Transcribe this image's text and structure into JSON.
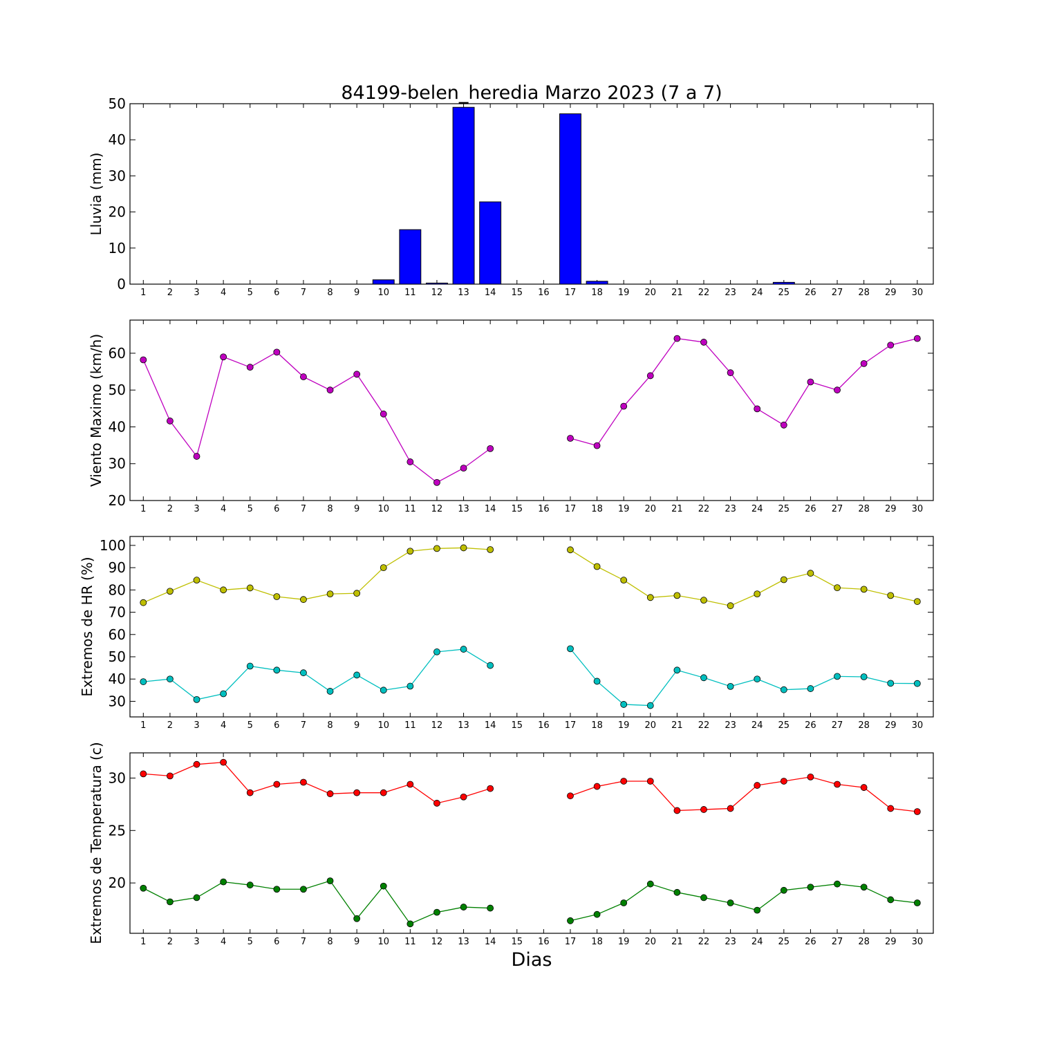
{
  "chart_data": {
    "title": "84199-belen_heredia Marzo 2023  (7 a 7)",
    "xlabel": "Dias",
    "days": [
      1,
      2,
      3,
      4,
      5,
      6,
      7,
      8,
      9,
      10,
      11,
      12,
      13,
      14,
      15,
      16,
      17,
      18,
      19,
      20,
      21,
      22,
      23,
      24,
      25,
      26,
      27,
      28,
      29,
      30
    ],
    "panels": [
      {
        "id": "lluvia",
        "type": "bar",
        "ylabel": "Lluvia (mm)",
        "ylim": [
          0,
          50
        ],
        "yticks": [
          0,
          10,
          20,
          30,
          40,
          50
        ],
        "series": [
          {
            "color": "#0000ff",
            "values": [
              0,
              0,
              0,
              0,
              0,
              0,
              0,
              0,
              0,
              1.2,
              15.1,
              0.3,
              49.0,
              22.8,
              0,
              0,
              47.2,
              0.8,
              0,
              0,
              0,
              0,
              0,
              0,
              0.5,
              0,
              0,
              0,
              0,
              0
            ]
          }
        ]
      },
      {
        "id": "viento",
        "type": "line",
        "ylabel": "Viento Maximo (km/h)",
        "ylim": [
          20,
          69
        ],
        "yticks": [
          20,
          30,
          40,
          50,
          60
        ],
        "series": [
          {
            "color": "#bf00bf",
            "values": [
              58.2,
              41.6,
              32.0,
              59.0,
              56.2,
              60.3,
              53.6,
              50.0,
              54.3,
              43.5,
              30.5,
              24.9,
              28.8,
              34.1,
              null,
              null,
              36.9,
              34.9,
              45.6,
              53.9,
              64.0,
              63.0,
              54.7,
              44.9,
              40.5,
              52.2,
              50.0,
              57.2,
              62.2,
              64.0
            ]
          }
        ]
      },
      {
        "id": "hr",
        "type": "line",
        "ylabel": "Extremos de HR (%)",
        "ylim": [
          23,
          104
        ],
        "yticks": [
          30,
          40,
          50,
          60,
          70,
          80,
          90,
          100
        ],
        "series": [
          {
            "color": "#bfbf00",
            "values": [
              74.3,
              79.4,
              84.4,
              80.0,
              80.9,
              77.0,
              75.7,
              78.2,
              78.5,
              90.0,
              97.4,
              98.6,
              98.9,
              98.1,
              null,
              null,
              98.0,
              90.5,
              84.4,
              76.6,
              77.5,
              75.4,
              72.9,
              78.2,
              84.6,
              87.5,
              81.0,
              80.3,
              77.5,
              74.8
            ]
          },
          {
            "color": "#00bfbf",
            "values": [
              38.8,
              40.0,
              30.8,
              33.4,
              45.8,
              44.0,
              42.8,
              34.5,
              41.8,
              35.0,
              36.8,
              52.2,
              53.4,
              46.1,
              null,
              null,
              53.6,
              39.0,
              28.6,
              28.1,
              44.0,
              40.6,
              36.7,
              40.0,
              35.2,
              35.7,
              41.2,
              41.0,
              38.1,
              38.0
            ]
          }
        ]
      },
      {
        "id": "temp",
        "type": "line",
        "ylabel": "Extremos de Temperatura (c)",
        "ylim": [
          15.2,
          32.4
        ],
        "yticks": [
          20,
          25,
          30
        ],
        "series": [
          {
            "color": "#ff0000",
            "values": [
              30.4,
              30.2,
              31.3,
              31.5,
              28.6,
              29.4,
              29.6,
              28.5,
              28.6,
              28.6,
              29.4,
              27.6,
              28.2,
              29.0,
              null,
              null,
              28.3,
              29.2,
              29.7,
              29.7,
              26.9,
              27.0,
              27.1,
              29.3,
              29.7,
              30.1,
              29.4,
              29.1,
              27.1,
              26.8
            ]
          },
          {
            "color": "#008000",
            "values": [
              19.5,
              18.2,
              18.6,
              20.1,
              19.8,
              19.4,
              19.4,
              20.2,
              16.6,
              19.7,
              16.1,
              17.2,
              17.7,
              17.6,
              null,
              null,
              16.4,
              17.0,
              18.1,
              19.9,
              19.1,
              18.6,
              18.1,
              17.4,
              19.3,
              19.6,
              19.9,
              19.6,
              18.4,
              18.1
            ]
          }
        ]
      }
    ]
  }
}
